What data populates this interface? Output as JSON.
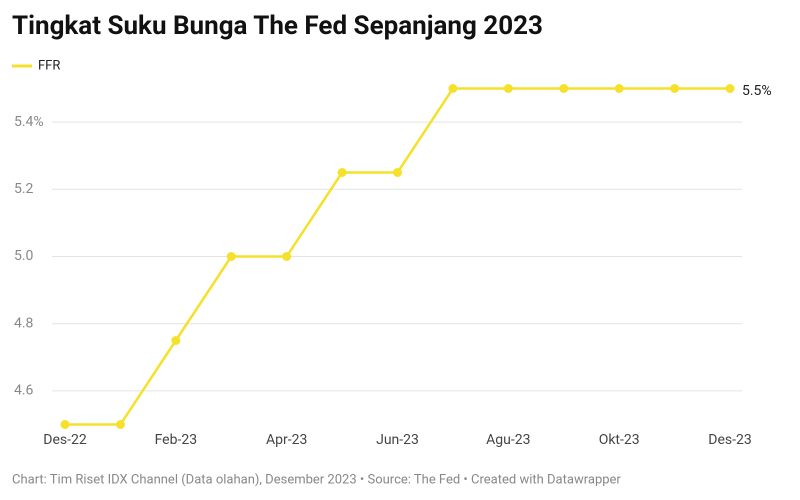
{
  "chart_data": {
    "type": "line",
    "title": "Tingkat Suku Bunga The Fed Sepanjang 2023",
    "categories": [
      "Des-22",
      null,
      "Feb-23",
      null,
      "Apr-23",
      null,
      "Jun-23",
      null,
      "Agu-23",
      null,
      "Okt-23",
      null,
      "Des-23"
    ],
    "series": [
      {
        "name": "FFR",
        "color": "#f5e12b",
        "values": [
          4.5,
          4.5,
          4.75,
          5.0,
          5.0,
          5.25,
          5.25,
          5.5,
          5.5,
          5.5,
          5.5,
          5.5,
          5.5
        ],
        "value_labels": [
          null,
          null,
          null,
          null,
          null,
          null,
          null,
          null,
          null,
          null,
          null,
          null,
          "5.5%"
        ]
      }
    ],
    "ylim": [
      4.5,
      5.5
    ],
    "yticks": [
      4.6,
      4.8,
      {
        "value": 5,
        "label": "5.0"
      },
      5.2,
      {
        "value": 5.4,
        "label": "5.4%"
      }
    ],
    "grid": true,
    "footer": "Chart: Tim Riset IDX Channel (Data olahan), Desember 2023 • Source: The Fed • Created with Datawrapper"
  }
}
